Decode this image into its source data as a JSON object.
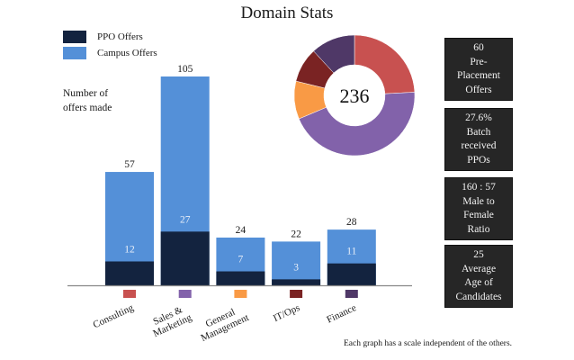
{
  "header": {
    "title": "Domain Stats"
  },
  "legend": [
    {
      "label": "PPO Offers",
      "color": "#13233f"
    },
    {
      "label": "Campus Offers",
      "color": "#5490d8"
    }
  ],
  "y_axis_label_lines": [
    "Number of",
    "offers made"
  ],
  "chart_data": [
    {
      "type": "bar",
      "stacked": true,
      "title": "",
      "ylabel": "Number of offers made",
      "categories": [
        "Consulting",
        "Sales & Marketing",
        "General Management",
        "IT/Ops",
        "Finance"
      ],
      "category_label_lines": [
        [
          "Consulting"
        ],
        [
          "Sales &",
          "Marketing"
        ],
        [
          "General",
          "Management"
        ],
        [
          "IT/Ops"
        ],
        [
          "Finance"
        ]
      ],
      "category_colors": [
        "#c85150",
        "#8262aa",
        "#f99a45",
        "#7a2323",
        "#4f3867"
      ],
      "series": [
        {
          "name": "PPO Offers",
          "values": [
            12,
            27,
            7,
            3,
            11
          ],
          "color": "#13233f"
        },
        {
          "name": "Campus Offers (total shown)",
          "totals": [
            57,
            105,
            24,
            22,
            28
          ],
          "color": "#5490d8"
        }
      ],
      "ylim": [
        0,
        105
      ],
      "grid": false
    },
    {
      "type": "pie",
      "donut": true,
      "center_label": "236",
      "labels": [
        "Consulting",
        "Sales & Marketing",
        "General Management",
        "IT/Ops",
        "Finance"
      ],
      "values": [
        57,
        105,
        24,
        22,
        28
      ],
      "colors": [
        "#c85150",
        "#8262aa",
        "#f99a45",
        "#7a2323",
        "#4f3867"
      ]
    }
  ],
  "stats": [
    {
      "lines": [
        "60",
        "Pre-",
        "Placement",
        "Offers"
      ]
    },
    {
      "lines": [
        "27.6%",
        "Batch",
        "received",
        "PPOs"
      ]
    },
    {
      "lines": [
        "160 : 57",
        "Male to",
        "Female",
        "Ratio"
      ]
    },
    {
      "lines": [
        "25",
        "Average",
        "Age of",
        "Candidates"
      ]
    }
  ],
  "footnote": "Each graph has a scale independent of the others."
}
